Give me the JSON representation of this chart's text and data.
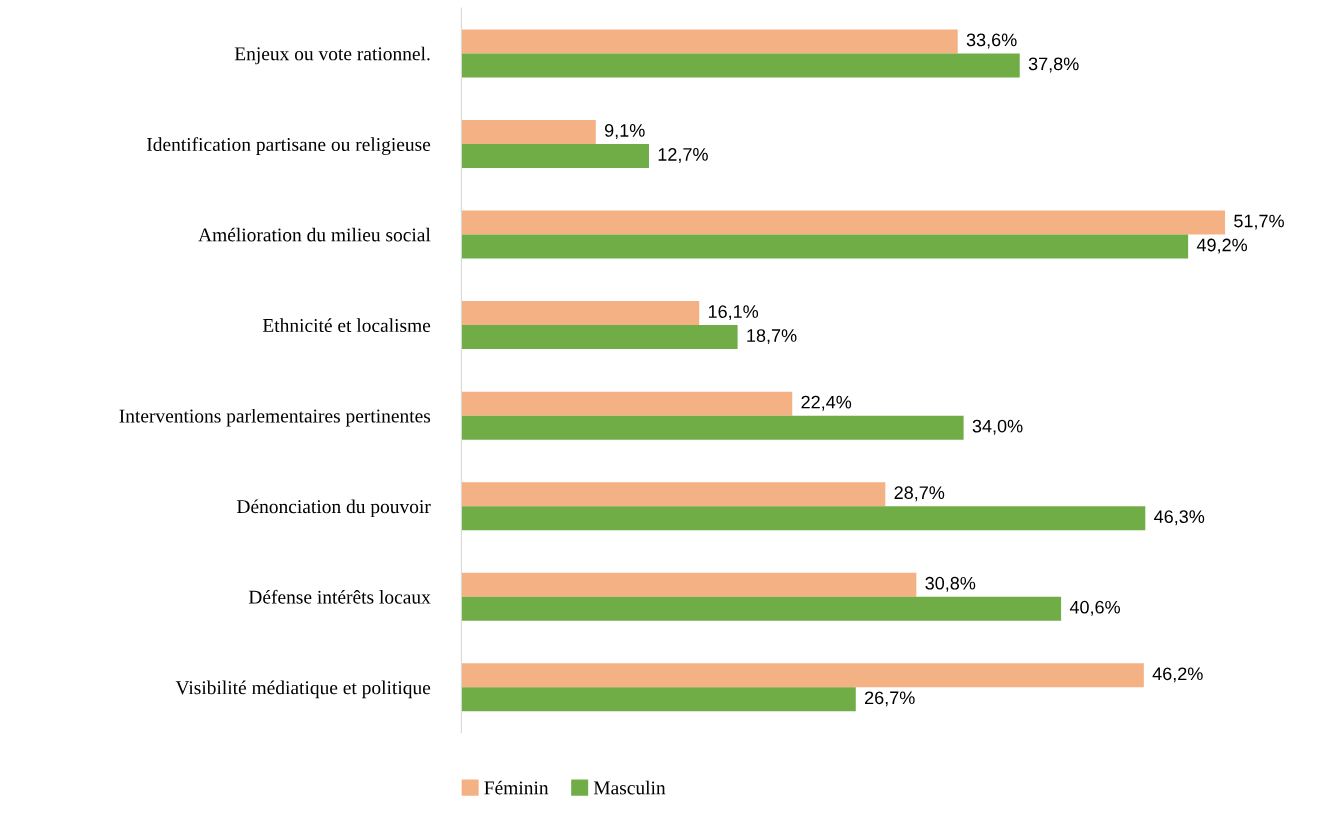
{
  "chart_data": {
    "type": "bar",
    "orientation": "horizontal",
    "categories": [
      "Enjeux ou vote rationnel.",
      "Identification partisane ou religieuse",
      "Amélioration du milieu social",
      "Ethnicité et localisme",
      "Interventions parlementaires pertinentes",
      "Dénonciation du pouvoir",
      "Défense intérêts locaux",
      "Visibilité médiatique et politique"
    ],
    "series": [
      {
        "name": "Féminin",
        "color": "#f4b183",
        "values": [
          33.6,
          9.1,
          51.7,
          16.1,
          22.4,
          28.7,
          30.8,
          46.2
        ],
        "value_labels": [
          "33,6%",
          "9,1%",
          "51,7%",
          "16,1%",
          "22,4%",
          "28,7%",
          "30,8%",
          "46,2%"
        ]
      },
      {
        "name": "Masculin",
        "color": "#70ad47",
        "values": [
          37.8,
          12.7,
          49.2,
          18.7,
          34.0,
          46.3,
          40.6,
          26.7
        ],
        "value_labels": [
          "37,8%",
          "12,7%",
          "49,2%",
          "18,7%",
          "34,0%",
          "46,3%",
          "40,6%",
          "26,7%"
        ]
      }
    ],
    "tick_labels": "y",
    "grid": false,
    "legend": "bottom"
  }
}
